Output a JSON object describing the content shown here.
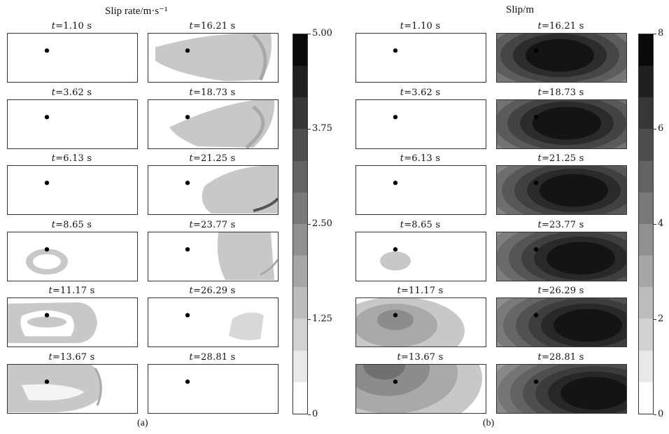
{
  "sections": [
    {
      "id": "a",
      "title": "Slip rate/m·s⁻¹",
      "sub_label": "(a)",
      "time_label_prefix": "t",
      "times": [
        "=1.10 s",
        "=3.62 s",
        "=6.13 s",
        "=8.65 s",
        "=11.17 s",
        "=13.67 s",
        "=16.21 s",
        "=18.73 s",
        "=21.25 s",
        "=23.77 s",
        "=26.29 s",
        "=28.81 s"
      ],
      "colorbar": {
        "min": 0,
        "max": 5.0,
        "levels": 12,
        "ticks": [
          "5.00",
          "3.75",
          "2.50",
          "1.25",
          "0"
        ]
      }
    },
    {
      "id": "b",
      "title": "Slip/m",
      "sub_label": "(b)",
      "time_label_prefix": "t",
      "times": [
        "=1.10 s",
        "=3.62 s",
        "=6.13 s",
        "=8.65 s",
        "=11.17 s",
        "=13.67 s",
        "=16.21 s",
        "=18.73 s",
        "=21.25 s",
        "=23.77 s",
        "=26.29 s",
        "=28.81 s"
      ],
      "colorbar": {
        "min": 0,
        "max": 8,
        "levels": 12,
        "ticks": [
          "8",
          "6",
          "4",
          "2",
          "0"
        ]
      }
    }
  ],
  "colors": {
    "hypocenter": "#000000",
    "frame": "#333333"
  }
}
